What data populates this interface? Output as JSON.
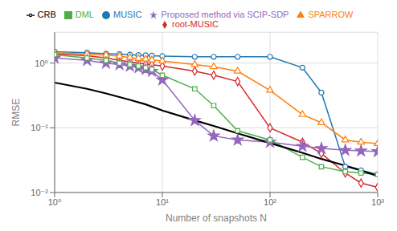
{
  "chart_data": {
    "type": "line",
    "xlabel": "Number of snapshots N",
    "ylabel": "RMSE",
    "log": true,
    "grid": true,
    "legend": "top",
    "xlim": [
      1,
      1000
    ],
    "ylim": [
      0.01,
      3.0
    ],
    "xticks": [
      {
        "value": 1,
        "label": "10⁰"
      },
      {
        "value": 10,
        "label": "10¹"
      },
      {
        "value": 100,
        "label": "10²"
      },
      {
        "value": 1000,
        "label": "10³"
      }
    ],
    "yticks": [
      {
        "value": 0.01,
        "label": "10⁻²"
      },
      {
        "value": 0.1,
        "label": "10⁻¹"
      },
      {
        "value": 1,
        "label": "10⁰"
      }
    ],
    "series": [
      {
        "name": "MUSIC",
        "color": "#1f77b4",
        "marker": "circle",
        "x": [
          1,
          2,
          3,
          4,
          5,
          6,
          7,
          8,
          10,
          20,
          30,
          50,
          100,
          200,
          300,
          500,
          700,
          1000
        ],
        "values": [
          1.5,
          1.45,
          1.4,
          1.38,
          1.35,
          1.33,
          1.32,
          1.3,
          1.28,
          1.25,
          1.25,
          1.25,
          1.25,
          0.85,
          0.35,
          0.025,
          0.022,
          0.019
        ]
      },
      {
        "name": "root-MUSIC",
        "color": "#d62728",
        "marker": "diamond",
        "x": [
          1,
          2,
          3,
          4,
          5,
          6,
          7,
          8,
          10,
          20,
          30,
          50,
          100,
          200,
          300,
          500,
          700,
          1000
        ],
        "values": [
          1.4,
          1.3,
          1.2,
          1.1,
          1.05,
          1.0,
          0.97,
          0.94,
          0.9,
          0.75,
          0.65,
          0.52,
          0.1,
          0.06,
          0.04,
          0.02,
          0.014,
          0.012
        ]
      },
      {
        "name": "SPARROW",
        "color": "#ff7f0e",
        "marker": "triangle",
        "x": [
          1,
          2,
          3,
          4,
          5,
          6,
          7,
          8,
          10,
          20,
          30,
          50,
          100,
          200,
          300,
          500,
          700,
          1000
        ],
        "values": [
          1.45,
          1.38,
          1.33,
          1.28,
          1.22,
          1.18,
          1.15,
          1.12,
          1.08,
          0.95,
          0.88,
          0.75,
          0.38,
          0.16,
          0.12,
          0.065,
          0.06,
          0.057
        ]
      },
      {
        "name": "Proposed method via SCIP-SDP",
        "color": "#9467bd",
        "marker": "star",
        "x": [
          1,
          2,
          3,
          4,
          5,
          6,
          7,
          8,
          10,
          20,
          30,
          50,
          100,
          200,
          300,
          500,
          700,
          1000
        ],
        "values": [
          1.2,
          1.1,
          1.0,
          0.95,
          0.9,
          0.85,
          0.8,
          0.75,
          0.55,
          0.13,
          0.075,
          0.065,
          0.06,
          0.052,
          0.048,
          0.045,
          0.044,
          0.043
        ]
      },
      {
        "name": "DML",
        "color": "#4daf4a",
        "marker": "square",
        "x": [
          1,
          2,
          3,
          4,
          5,
          6,
          7,
          8,
          10,
          20,
          30,
          50,
          100,
          200,
          300,
          500,
          700,
          1000
        ],
        "values": [
          1.35,
          1.2,
          1.1,
          1.0,
          0.95,
          0.9,
          0.85,
          0.8,
          0.65,
          0.4,
          0.22,
          0.09,
          0.065,
          0.035,
          0.025,
          0.021,
          0.02,
          0.019
        ]
      },
      {
        "name": "CRB",
        "color": "#000000",
        "x": [
          1,
          2,
          3,
          5,
          7,
          10,
          20,
          30,
          50,
          100,
          200,
          300,
          500,
          700,
          1000
        ],
        "values": [
          0.5,
          0.4,
          0.34,
          0.27,
          0.23,
          0.185,
          0.13,
          0.107,
          0.082,
          0.058,
          0.041,
          0.033,
          0.026,
          0.022,
          0.018
        ]
      }
    ]
  }
}
